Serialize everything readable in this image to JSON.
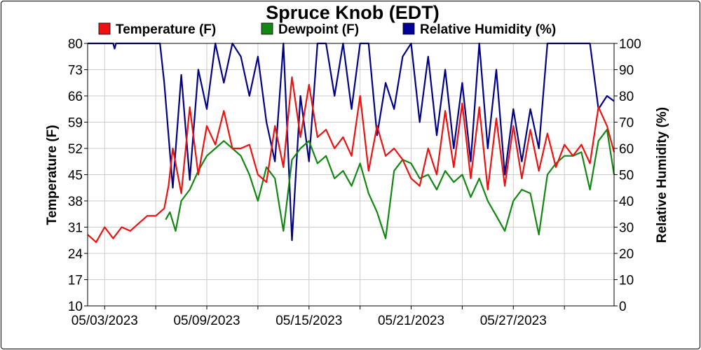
{
  "chart_data": {
    "type": "line",
    "title": "Spruce Knob (EDT)",
    "ylabel": "Temperature (F)",
    "y2label": "Relative Humidity (%)",
    "ylim": [
      10,
      80
    ],
    "y2lim": [
      0,
      100
    ],
    "yticks": [
      "10",
      "17",
      "24",
      "31",
      "38",
      "45",
      "52",
      "59",
      "66",
      "73",
      "80"
    ],
    "y2ticks": [
      "0",
      "10",
      "20",
      "30",
      "40",
      "50",
      "60",
      "70",
      "80",
      "90",
      "100"
    ],
    "xlim": [
      "2023-05-02T00:00",
      "2023-06-01T22:00"
    ],
    "xticks": [
      {
        "label": "05/03/2023",
        "date": "2023-05-03"
      },
      {
        "label": "05/09/2023",
        "date": "2023-05-09"
      },
      {
        "label": "05/15/2023",
        "date": "2023-05-15"
      },
      {
        "label": "05/21/2023",
        "date": "2023-05-21"
      },
      {
        "label": "05/27/2023",
        "date": "2023-05-27"
      }
    ],
    "grid": true,
    "legend_position": "top",
    "series": [
      {
        "name": "Temperature (F)",
        "axis": "left",
        "color": "#ee1111",
        "points": [
          [
            "2023-05-02T00:00",
            29
          ],
          [
            "2023-05-02T12:00",
            27
          ],
          [
            "2023-05-03T00:00",
            31
          ],
          [
            "2023-05-03T12:00",
            28
          ],
          [
            "2023-05-04T00:00",
            31
          ],
          [
            "2023-05-04T12:00",
            30
          ],
          [
            "2023-05-05T00:00",
            32
          ],
          [
            "2023-05-05T12:00",
            34
          ],
          [
            "2023-05-06T00:00",
            34
          ],
          [
            "2023-05-06T12:00",
            36
          ],
          [
            "2023-05-06T18:00",
            42
          ],
          [
            "2023-05-07T00:00",
            52
          ],
          [
            "2023-05-07T12:00",
            40
          ],
          [
            "2023-05-08T00:00",
            63
          ],
          [
            "2023-05-08T12:00",
            45
          ],
          [
            "2023-05-09T00:00",
            58
          ],
          [
            "2023-05-09T12:00",
            53
          ],
          [
            "2023-05-10T00:00",
            62
          ],
          [
            "2023-05-10T12:00",
            52
          ],
          [
            "2023-05-11T00:00",
            52
          ],
          [
            "2023-05-11T12:00",
            53
          ],
          [
            "2023-05-12T00:00",
            45
          ],
          [
            "2023-05-12T12:00",
            43
          ],
          [
            "2023-05-13T00:00",
            58
          ],
          [
            "2023-05-13T12:00",
            47
          ],
          [
            "2023-05-14T00:00",
            71
          ],
          [
            "2023-05-14T12:00",
            55
          ],
          [
            "2023-05-15T00:00",
            69
          ],
          [
            "2023-05-15T12:00",
            55
          ],
          [
            "2023-05-16T00:00",
            57
          ],
          [
            "2023-05-16T12:00",
            52
          ],
          [
            "2023-05-17T00:00",
            55
          ],
          [
            "2023-05-17T12:00",
            50
          ],
          [
            "2023-05-18T00:00",
            66
          ],
          [
            "2023-05-18T12:00",
            46
          ],
          [
            "2023-05-19T00:00",
            58
          ],
          [
            "2023-05-19T12:00",
            50
          ],
          [
            "2023-05-20T00:00",
            52
          ],
          [
            "2023-05-20T12:00",
            49
          ],
          [
            "2023-05-21T00:00",
            44
          ],
          [
            "2023-05-21T12:00",
            42
          ],
          [
            "2023-05-22T00:00",
            52
          ],
          [
            "2023-05-22T12:00",
            45
          ],
          [
            "2023-05-23T00:00",
            62
          ],
          [
            "2023-05-23T12:00",
            47
          ],
          [
            "2023-05-24T00:00",
            64
          ],
          [
            "2023-05-24T12:00",
            44
          ],
          [
            "2023-05-25T00:00",
            63
          ],
          [
            "2023-05-25T12:00",
            41
          ],
          [
            "2023-05-26T00:00",
            60
          ],
          [
            "2023-05-26T12:00",
            42
          ],
          [
            "2023-05-27T00:00",
            58
          ],
          [
            "2023-05-27T12:00",
            44
          ],
          [
            "2023-05-28T00:00",
            57
          ],
          [
            "2023-05-28T12:00",
            46
          ],
          [
            "2023-05-29T00:00",
            56
          ],
          [
            "2023-05-29T12:00",
            47
          ],
          [
            "2023-05-30T00:00",
            53
          ],
          [
            "2023-05-30T12:00",
            50
          ],
          [
            "2023-05-31T00:00",
            53
          ],
          [
            "2023-05-31T12:00",
            48
          ],
          [
            "2023-06-01T00:00",
            63
          ],
          [
            "2023-06-01T12:00",
            58
          ],
          [
            "2023-06-01T22:00",
            51
          ]
        ]
      },
      {
        "name": "Dewpoint (F)",
        "axis": "left",
        "color": "#118811",
        "points": [
          [
            "2023-05-06T14:00",
            33
          ],
          [
            "2023-05-06T20:00",
            35
          ],
          [
            "2023-05-07T04:00",
            30
          ],
          [
            "2023-05-07T12:00",
            38
          ],
          [
            "2023-05-08T00:00",
            41
          ],
          [
            "2023-05-08T12:00",
            46
          ],
          [
            "2023-05-09T00:00",
            50
          ],
          [
            "2023-05-09T12:00",
            52
          ],
          [
            "2023-05-10T00:00",
            54
          ],
          [
            "2023-05-10T12:00",
            52
          ],
          [
            "2023-05-11T00:00",
            50
          ],
          [
            "2023-05-11T12:00",
            45
          ],
          [
            "2023-05-12T00:00",
            38
          ],
          [
            "2023-05-12T12:00",
            47
          ],
          [
            "2023-05-13T00:00",
            44
          ],
          [
            "2023-05-13T12:00",
            30
          ],
          [
            "2023-05-14T00:00",
            49
          ],
          [
            "2023-05-14T12:00",
            52
          ],
          [
            "2023-05-15T00:00",
            54
          ],
          [
            "2023-05-15T12:00",
            48
          ],
          [
            "2023-05-16T00:00",
            50
          ],
          [
            "2023-05-16T12:00",
            44
          ],
          [
            "2023-05-17T00:00",
            46
          ],
          [
            "2023-05-17T12:00",
            42
          ],
          [
            "2023-05-18T00:00",
            48
          ],
          [
            "2023-05-18T12:00",
            40
          ],
          [
            "2023-05-19T00:00",
            35
          ],
          [
            "2023-05-19T12:00",
            28
          ],
          [
            "2023-05-20T00:00",
            46
          ],
          [
            "2023-05-20T12:00",
            49
          ],
          [
            "2023-05-21T00:00",
            48
          ],
          [
            "2023-05-21T12:00",
            44
          ],
          [
            "2023-05-22T00:00",
            45
          ],
          [
            "2023-05-22T12:00",
            41
          ],
          [
            "2023-05-23T00:00",
            46
          ],
          [
            "2023-05-23T12:00",
            43
          ],
          [
            "2023-05-24T00:00",
            45
          ],
          [
            "2023-05-24T12:00",
            39
          ],
          [
            "2023-05-25T00:00",
            44
          ],
          [
            "2023-05-25T12:00",
            38
          ],
          [
            "2023-05-26T00:00",
            34
          ],
          [
            "2023-05-26T12:00",
            30
          ],
          [
            "2023-05-27T00:00",
            38
          ],
          [
            "2023-05-27T12:00",
            41
          ],
          [
            "2023-05-28T00:00",
            40
          ],
          [
            "2023-05-28T12:00",
            29
          ],
          [
            "2023-05-29T00:00",
            45
          ],
          [
            "2023-05-29T12:00",
            48
          ],
          [
            "2023-05-30T00:00",
            50
          ],
          [
            "2023-05-30T12:00",
            50
          ],
          [
            "2023-05-31T00:00",
            51
          ],
          [
            "2023-05-31T12:00",
            41
          ],
          [
            "2023-06-01T00:00",
            54
          ],
          [
            "2023-06-01T12:00",
            57
          ],
          [
            "2023-06-01T22:00",
            45
          ]
        ]
      },
      {
        "name": "Relative Humidity (%)",
        "axis": "right",
        "color": "#000088",
        "points": [
          [
            "2023-05-02T00:00",
            100
          ],
          [
            "2023-05-03T12:00",
            100
          ],
          [
            "2023-05-03T14:00",
            98
          ],
          [
            "2023-05-03T16:00",
            100
          ],
          [
            "2023-05-05T00:00",
            100
          ],
          [
            "2023-05-05T12:00",
            100
          ],
          [
            "2023-05-06T06:00",
            100
          ],
          [
            "2023-05-06T12:00",
            85
          ],
          [
            "2023-05-07T00:00",
            45
          ],
          [
            "2023-05-07T12:00",
            88
          ],
          [
            "2023-05-08T00:00",
            48
          ],
          [
            "2023-05-08T12:00",
            90
          ],
          [
            "2023-05-09T00:00",
            75
          ],
          [
            "2023-05-09T12:00",
            100
          ],
          [
            "2023-05-10T00:00",
            85
          ],
          [
            "2023-05-10T12:00",
            100
          ],
          [
            "2023-05-11T00:00",
            95
          ],
          [
            "2023-05-11T12:00",
            80
          ],
          [
            "2023-05-12T00:00",
            95
          ],
          [
            "2023-05-12T12:00",
            70
          ],
          [
            "2023-05-13T00:00",
            55
          ],
          [
            "2023-05-13T12:00",
            100
          ],
          [
            "2023-05-14T00:00",
            25
          ],
          [
            "2023-05-14T12:00",
            80
          ],
          [
            "2023-05-15T00:00",
            55
          ],
          [
            "2023-05-15T12:00",
            100
          ],
          [
            "2023-05-16T00:00",
            100
          ],
          [
            "2023-05-16T12:00",
            80
          ],
          [
            "2023-05-17T00:00",
            100
          ],
          [
            "2023-05-17T12:00",
            75
          ],
          [
            "2023-05-18T00:00",
            100
          ],
          [
            "2023-05-18T12:00",
            100
          ],
          [
            "2023-05-19T00:00",
            65
          ],
          [
            "2023-05-19T12:00",
            85
          ],
          [
            "2023-05-20T00:00",
            75
          ],
          [
            "2023-05-20T12:00",
            95
          ],
          [
            "2023-05-21T00:00",
            100
          ],
          [
            "2023-05-21T12:00",
            70
          ],
          [
            "2023-05-22T00:00",
            95
          ],
          [
            "2023-05-22T12:00",
            65
          ],
          [
            "2023-05-23T00:00",
            90
          ],
          [
            "2023-05-23T12:00",
            60
          ],
          [
            "2023-05-24T00:00",
            85
          ],
          [
            "2023-05-24T12:00",
            55
          ],
          [
            "2023-05-25T00:00",
            100
          ],
          [
            "2023-05-25T12:00",
            60
          ],
          [
            "2023-05-26T00:00",
            90
          ],
          [
            "2023-05-26T12:00",
            50
          ],
          [
            "2023-05-27T00:00",
            75
          ],
          [
            "2023-05-27T12:00",
            55
          ],
          [
            "2023-05-28T00:00",
            75
          ],
          [
            "2023-05-28T12:00",
            60
          ],
          [
            "2023-05-29T00:00",
            100
          ],
          [
            "2023-05-29T12:00",
            100
          ],
          [
            "2023-05-30T00:00",
            100
          ],
          [
            "2023-05-30T12:00",
            100
          ],
          [
            "2023-05-31T00:00",
            100
          ],
          [
            "2023-05-31T12:00",
            100
          ],
          [
            "2023-06-01T00:00",
            75
          ],
          [
            "2023-06-01T12:00",
            80
          ],
          [
            "2023-06-01T22:00",
            78
          ]
        ]
      }
    ]
  }
}
